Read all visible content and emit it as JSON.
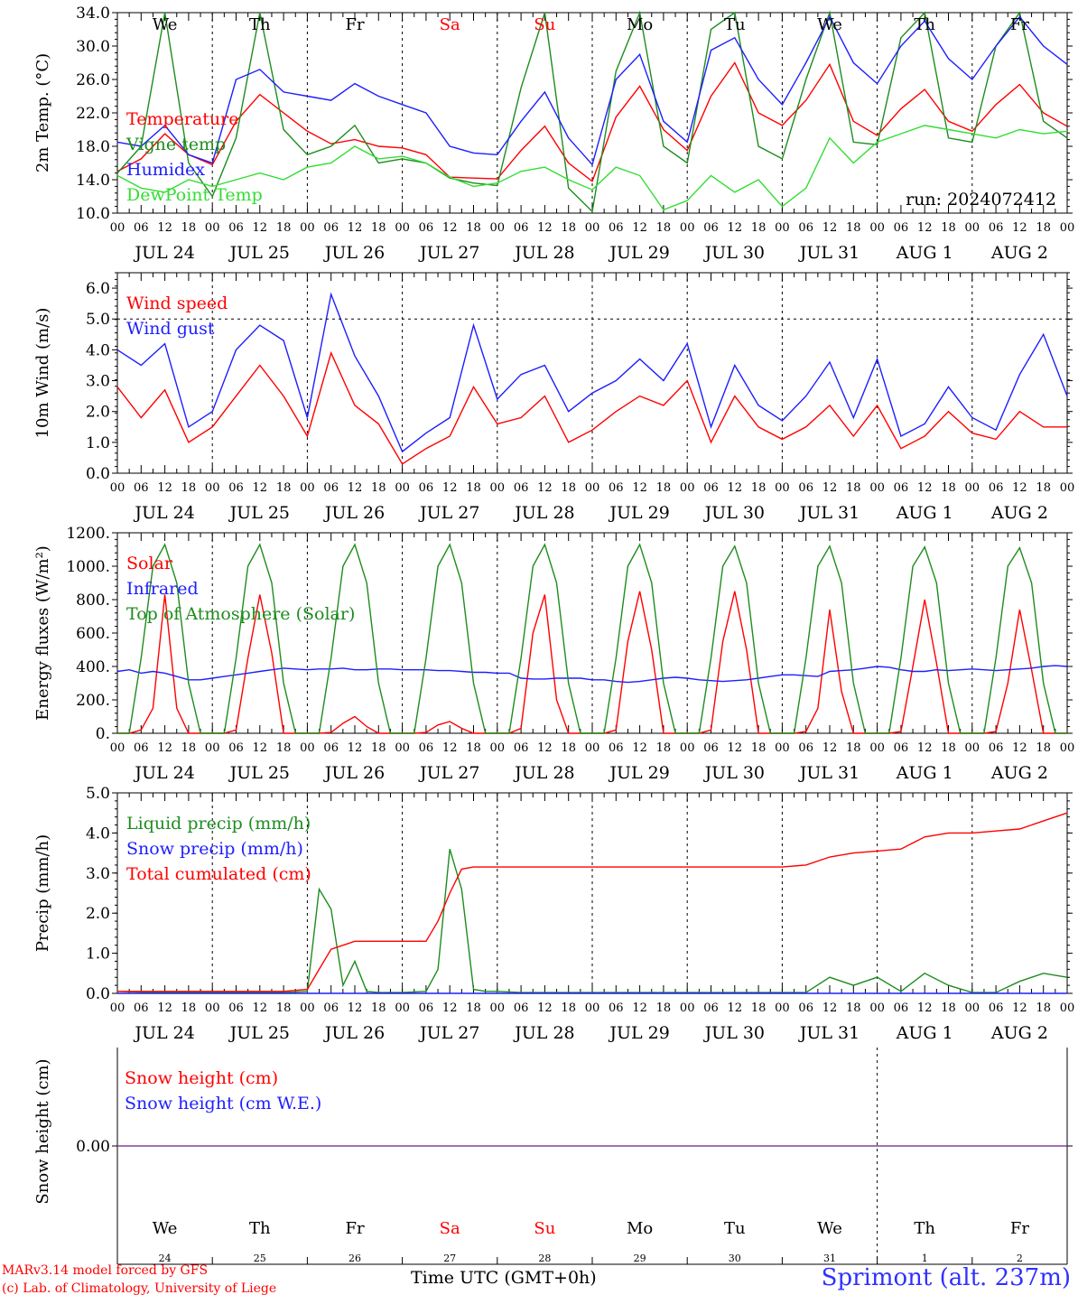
{
  "run_label": "run: 2024072412",
  "footer": {
    "credit_line1": "MARv3.14 model forced by GFS",
    "credit_line2": "(c) Lab. of Climatology, University of Liege",
    "time_label": "Time UTC (GMT+0h)",
    "station": "Sprimont (alt. 237m)"
  },
  "colors": {
    "red": "#ff0000",
    "green": "#1e8c1e",
    "blue": "#1e1eff",
    "light_green": "#33dd33",
    "purple": "#8040a0"
  },
  "hour_ticks": [
    "00",
    "06",
    "12",
    "18"
  ],
  "date_labels": [
    "JUL 24",
    "JUL 25",
    "JUL 26",
    "JUL 27",
    "JUL 28",
    "JUL 29",
    "JUL 30",
    "JUL 31",
    "AUG  1",
    "AUG  2"
  ],
  "chart_data": [
    {
      "type": "line",
      "ylabel": "2m Temp. (°C)",
      "ylim": [
        10,
        34
      ],
      "yticks": [
        "10.0",
        "14.0",
        "18.0",
        "22.0",
        "26.0",
        "30.0",
        "34.0"
      ],
      "days": [
        {
          "label": "We",
          "color": "#000000"
        },
        {
          "label": "Th",
          "color": "#000000"
        },
        {
          "label": "Fr",
          "color": "#000000"
        },
        {
          "label": "Sa",
          "color": "#ff0000"
        },
        {
          "label": "Su",
          "color": "#ff0000"
        },
        {
          "label": "Mo",
          "color": "#000000"
        },
        {
          "label": "Tu",
          "color": "#000000"
        },
        {
          "label": "We",
          "color": "#000000"
        },
        {
          "label": "Th",
          "color": "#000000"
        },
        {
          "label": "Fr",
          "color": "#000000"
        }
      ],
      "x_hours": [
        0,
        6,
        12,
        18,
        24,
        30,
        36,
        42,
        48,
        54,
        60,
        66,
        72,
        78,
        84,
        90,
        96,
        102,
        108,
        114,
        120,
        126,
        132,
        138,
        144,
        150,
        156,
        162,
        168,
        174,
        180,
        186,
        192,
        198,
        204,
        210,
        216,
        222,
        228,
        234,
        240
      ],
      "series": [
        {
          "name": "Temperature",
          "color": "#ff0000",
          "values": [
            15.0,
            16.5,
            19.5,
            17.0,
            15.8,
            21.0,
            24.2,
            22.0,
            19.8,
            18.3,
            18.8,
            18.0,
            17.8,
            17.0,
            14.3,
            14.2,
            14.1,
            17.5,
            20.4,
            16.0,
            13.8,
            21.5,
            25.2,
            20.0,
            17.5,
            24.0,
            28.0,
            22.0,
            20.5,
            23.5,
            27.8,
            21.0,
            19.3,
            22.5,
            24.8,
            21.0,
            19.8,
            23.0,
            25.4,
            22.0,
            20.4
          ]
        },
        {
          "name": "Vigne temp",
          "color": "#1e8c1e",
          "values": [
            14.8,
            18.0,
            34.0,
            16.0,
            12.0,
            19.0,
            34.0,
            20.0,
            17.0,
            18.0,
            20.5,
            16.0,
            16.5,
            16.0,
            14.2,
            13.6,
            13.3,
            25.0,
            34.0,
            13.0,
            10.2,
            27.0,
            34.0,
            18.0,
            16.0,
            32.0,
            34.0,
            18.0,
            16.5,
            26.0,
            34.0,
            18.5,
            18.2,
            31.0,
            34.0,
            19.0,
            18.5,
            30.0,
            34.0,
            21.0,
            19.0
          ]
        },
        {
          "name": "Humidex",
          "color": "#1e1eff",
          "values": [
            18.5,
            18.0,
            20.5,
            17.0,
            16.0,
            26.0,
            27.2,
            24.5,
            24.0,
            23.5,
            25.5,
            24.0,
            23.0,
            22.0,
            18.0,
            17.2,
            17.0,
            21.0,
            24.5,
            19.0,
            15.8,
            26.0,
            29.0,
            21.0,
            18.5,
            29.5,
            31.0,
            26.0,
            23.0,
            28.0,
            33.5,
            28.0,
            25.5,
            30.0,
            33.0,
            28.5,
            26.0,
            30.0,
            33.5,
            30.0,
            27.8
          ]
        },
        {
          "name": "DewPoint Temp",
          "color": "#33dd33",
          "values": [
            14.5,
            13.0,
            12.5,
            14.0,
            13.2,
            14.0,
            14.8,
            14.0,
            15.5,
            16.0,
            18.0,
            16.5,
            16.8,
            16.0,
            14.3,
            13.2,
            13.6,
            15.0,
            15.5,
            14.0,
            12.8,
            15.5,
            14.5,
            10.4,
            11.5,
            14.5,
            12.5,
            14.0,
            10.8,
            13.0,
            19.0,
            16.0,
            18.5,
            19.5,
            20.5,
            20.0,
            19.5,
            19.0,
            20.0,
            19.5,
            19.8
          ]
        }
      ]
    },
    {
      "type": "line",
      "ylabel": "10m Wind (m/s)",
      "ylim": [
        0,
        6.5
      ],
      "yticks": [
        "0.0",
        "1.0",
        "2.0",
        "3.0",
        "4.0",
        "5.0",
        "6.0"
      ],
      "x_hours": [
        0,
        6,
        12,
        18,
        24,
        30,
        36,
        42,
        48,
        54,
        60,
        66,
        72,
        78,
        84,
        90,
        96,
        102,
        108,
        114,
        120,
        126,
        132,
        138,
        144,
        150,
        156,
        162,
        168,
        174,
        180,
        186,
        192,
        198,
        204,
        210,
        216,
        222,
        228,
        234,
        240
      ],
      "series": [
        {
          "name": "Wind speed",
          "color": "#ff0000",
          "values": [
            2.8,
            1.8,
            2.7,
            1.0,
            1.5,
            2.5,
            3.5,
            2.5,
            1.2,
            3.9,
            2.2,
            1.6,
            0.3,
            0.8,
            1.2,
            2.8,
            1.6,
            1.8,
            2.5,
            1.0,
            1.4,
            2.0,
            2.5,
            2.2,
            3.0,
            1.0,
            2.5,
            1.5,
            1.1,
            1.5,
            2.2,
            1.2,
            2.2,
            0.8,
            1.2,
            2.0,
            1.3,
            1.1,
            2.0,
            1.5,
            1.5
          ]
        },
        {
          "name": "Wind gust",
          "color": "#1e1eff",
          "values": [
            4.0,
            3.5,
            4.2,
            1.5,
            2.0,
            4.0,
            4.8,
            4.3,
            1.8,
            5.8,
            3.8,
            2.5,
            0.7,
            1.3,
            1.8,
            4.8,
            2.4,
            3.2,
            3.5,
            2.0,
            2.6,
            3.0,
            3.7,
            3.0,
            4.2,
            1.5,
            3.5,
            2.2,
            1.7,
            2.5,
            3.6,
            1.8,
            3.7,
            1.2,
            1.6,
            2.8,
            1.8,
            1.4,
            3.2,
            4.5,
            2.5
          ]
        }
      ]
    },
    {
      "type": "line",
      "ylabel": "Energy fluxes (W/m²)",
      "ylim": [
        0,
        1200
      ],
      "yticks": [
        "0.",
        "200.",
        "400.",
        "600.",
        "800.",
        "1000.",
        "1200."
      ],
      "x_hours": [
        0,
        3,
        6,
        9,
        12,
        15,
        18,
        21,
        24,
        27,
        30,
        33,
        36,
        39,
        42,
        45,
        48,
        51,
        54,
        57,
        60,
        63,
        66,
        69,
        72,
        75,
        78,
        81,
        84,
        87,
        90,
        93,
        96,
        99,
        102,
        105,
        108,
        111,
        114,
        117,
        120,
        123,
        126,
        129,
        132,
        135,
        138,
        141,
        144,
        147,
        150,
        153,
        156,
        159,
        162,
        165,
        168,
        171,
        174,
        177,
        180,
        183,
        186,
        189,
        192,
        195,
        198,
        201,
        204,
        207,
        210,
        213,
        216,
        219,
        222,
        225,
        228,
        231,
        234,
        237,
        240
      ],
      "series": [
        {
          "name": "Solar",
          "color": "#ff0000",
          "values": [
            0,
            0,
            20,
            150,
            830,
            150,
            0,
            0,
            0,
            0,
            20,
            450,
            830,
            480,
            0,
            0,
            0,
            0,
            5,
            60,
            100,
            40,
            0,
            0,
            0,
            0,
            5,
            50,
            70,
            30,
            0,
            0,
            0,
            0,
            30,
            600,
            830,
            200,
            0,
            0,
            0,
            0,
            20,
            550,
            850,
            500,
            0,
            0,
            0,
            0,
            20,
            550,
            850,
            500,
            0,
            0,
            0,
            0,
            10,
            150,
            740,
            250,
            0,
            0,
            0,
            0,
            10,
            400,
            800,
            420,
            0,
            0,
            0,
            0,
            10,
            300,
            740,
            380,
            0,
            0,
            0
          ]
        },
        {
          "name": "Infrared",
          "color": "#1e1eff",
          "values": [
            370,
            380,
            360,
            370,
            360,
            340,
            320,
            320,
            330,
            340,
            350,
            360,
            370,
            380,
            390,
            385,
            380,
            385,
            385,
            390,
            380,
            380,
            385,
            385,
            380,
            380,
            380,
            375,
            375,
            370,
            365,
            365,
            360,
            360,
            330,
            325,
            325,
            330,
            330,
            330,
            320,
            320,
            310,
            305,
            310,
            320,
            330,
            335,
            330,
            320,
            315,
            310,
            315,
            320,
            330,
            340,
            350,
            350,
            345,
            340,
            370,
            375,
            380,
            390,
            400,
            395,
            380,
            370,
            370,
            380,
            375,
            380,
            385,
            380,
            375,
            380,
            385,
            390,
            400,
            405,
            400
          ]
        },
        {
          "name": "Top of Atmosphere (Solar)",
          "color": "#1e8c1e",
          "values": [
            0,
            0,
            450,
            1000,
            1130,
            900,
            300,
            0,
            0,
            0,
            450,
            1000,
            1130,
            900,
            300,
            0,
            0,
            0,
            450,
            1000,
            1130,
            900,
            300,
            0,
            0,
            0,
            450,
            1000,
            1130,
            900,
            300,
            0,
            0,
            0,
            450,
            1000,
            1130,
            900,
            300,
            0,
            0,
            0,
            450,
            1000,
            1130,
            900,
            300,
            0,
            0,
            0,
            450,
            1000,
            1120,
            900,
            300,
            0,
            0,
            0,
            450,
            1000,
            1120,
            900,
            300,
            0,
            0,
            0,
            450,
            1000,
            1115,
            900,
            300,
            0,
            0,
            0,
            450,
            1000,
            1110,
            900,
            300,
            0,
            0
          ]
        }
      ]
    },
    {
      "type": "line",
      "ylabel": "Precip (mm/h)",
      "ylim": [
        0,
        5.0
      ],
      "yticks": [
        "0.0",
        "1.0",
        "2.0",
        "3.0",
        "4.0",
        "5.0"
      ],
      "x_hours": [
        0,
        6,
        12,
        18,
        24,
        30,
        36,
        42,
        48,
        51,
        54,
        57,
        60,
        63,
        66,
        72,
        78,
        81,
        84,
        87,
        90,
        93,
        96,
        102,
        108,
        114,
        120,
        132,
        144,
        156,
        168,
        174,
        180,
        186,
        192,
        198,
        204,
        210,
        216,
        222,
        228,
        234,
        240
      ],
      "series": [
        {
          "name": "Liquid precip (mm/h)",
          "color": "#1e8c1e",
          "values": [
            0.05,
            0.03,
            0.02,
            0.02,
            0.02,
            0.02,
            0.02,
            0.02,
            0.05,
            2.6,
            2.1,
            0.2,
            0.8,
            0.05,
            0.02,
            0.02,
            0.05,
            0.6,
            3.6,
            2.6,
            0.1,
            0.05,
            0.05,
            0.02,
            0.02,
            0.02,
            0.02,
            0.02,
            0.02,
            0.02,
            0.02,
            0.02,
            0.4,
            0.2,
            0.4,
            0.05,
            0.5,
            0.2,
            0.02,
            0.02,
            0.3,
            0.5,
            0.4
          ]
        },
        {
          "name": "Snow precip (mm/h)",
          "color": "#1e1eff",
          "values": [
            0,
            0,
            0,
            0,
            0,
            0,
            0,
            0,
            0,
            0,
            0,
            0,
            0,
            0,
            0,
            0,
            0,
            0,
            0,
            0,
            0,
            0,
            0,
            0,
            0,
            0,
            0,
            0,
            0,
            0,
            0,
            0,
            0,
            0,
            0,
            0,
            0,
            0,
            0,
            0,
            0,
            0,
            0
          ]
        },
        {
          "name": "Total cumulated (cm)",
          "color": "#ff0000",
          "values": [
            0.05,
            0.05,
            0.05,
            0.05,
            0.05,
            0.05,
            0.05,
            0.05,
            0.1,
            0.6,
            1.1,
            1.2,
            1.3,
            1.3,
            1.3,
            1.3,
            1.3,
            1.8,
            2.5,
            3.1,
            3.15,
            3.15,
            3.15,
            3.15,
            3.15,
            3.15,
            3.15,
            3.15,
            3.15,
            3.15,
            3.15,
            3.2,
            3.4,
            3.5,
            3.55,
            3.6,
            3.9,
            4.0,
            4.0,
            4.05,
            4.1,
            4.3,
            4.5
          ]
        }
      ]
    },
    {
      "type": "line",
      "ylabel": "Snow height (cm)",
      "yticks": [
        "0.00"
      ],
      "series": [
        {
          "name": "Snow height (cm)",
          "color": "#ff0000",
          "values": [
            0,
            0
          ]
        },
        {
          "name": "Snow height (cm W.E.)",
          "color": "#1e1eff",
          "values": [
            0,
            0
          ]
        }
      ],
      "days": [
        {
          "label": "We",
          "date": "24",
          "color": "#000000"
        },
        {
          "label": "Th",
          "date": "25",
          "color": "#000000"
        },
        {
          "label": "Fr",
          "date": "26",
          "color": "#000000"
        },
        {
          "label": "Sa",
          "date": "27",
          "color": "#ff0000"
        },
        {
          "label": "Su",
          "date": "28",
          "color": "#ff0000"
        },
        {
          "label": "Mo",
          "date": "29",
          "color": "#000000"
        },
        {
          "label": "Tu",
          "date": "30",
          "color": "#000000"
        },
        {
          "label": "We",
          "date": "31",
          "color": "#000000"
        },
        {
          "label": "Th",
          "date": "1",
          "color": "#000000"
        },
        {
          "label": "Fr",
          "date": "2",
          "color": "#000000"
        }
      ]
    }
  ]
}
